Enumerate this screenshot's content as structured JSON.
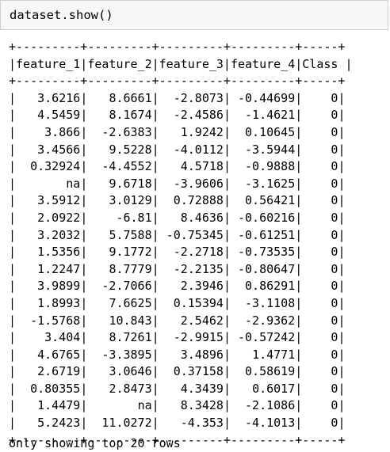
{
  "input": {
    "code": "dataset.show()"
  },
  "table": {
    "border_line": "+---------+---------+---------+---------+-----+",
    "header_line": "|feature_1|feature_2|feature_3|feature_4|Class |",
    "columns": [
      "feature_1",
      "feature_2",
      "feature_3",
      "feature_4",
      "Class"
    ],
    "rows": [
      [
        "3.6216",
        "8.6661",
        "-2.8073",
        "-0.44699",
        "0"
      ],
      [
        "4.5459",
        "8.1674",
        "-2.4586",
        "-1.4621",
        "0"
      ],
      [
        "3.866",
        "-2.6383",
        "1.9242",
        "0.10645",
        "0"
      ],
      [
        "3.4566",
        "9.5228",
        "-4.0112",
        "-3.5944",
        "0"
      ],
      [
        "0.32924",
        "-4.4552",
        "4.5718",
        "-0.9888",
        "0"
      ],
      [
        "na",
        "9.6718",
        "-3.9606",
        "-3.1625",
        "0"
      ],
      [
        "3.5912",
        "3.0129",
        "0.72888",
        "0.56421",
        "0"
      ],
      [
        "2.0922",
        "-6.81",
        "8.4636",
        "-0.60216",
        "0"
      ],
      [
        "3.2032",
        "5.7588",
        "-0.75345",
        "-0.61251",
        "0"
      ],
      [
        "1.5356",
        "9.1772",
        "-2.2718",
        "-0.73535",
        "0"
      ],
      [
        "1.2247",
        "8.7779",
        "-2.2135",
        "-0.80647",
        "0"
      ],
      [
        "3.9899",
        "-2.7066",
        "2.3946",
        "0.86291",
        "0"
      ],
      [
        "1.8993",
        "7.6625",
        "0.15394",
        "-3.1108",
        "0"
      ],
      [
        "-1.5768",
        "10.843",
        "2.5462",
        "-2.9362",
        "0"
      ],
      [
        "3.404",
        "8.7261",
        "-2.9915",
        "-0.57242",
        "0"
      ],
      [
        "4.6765",
        "-3.3895",
        "3.4896",
        "1.4771",
        "0"
      ],
      [
        "2.6719",
        "3.0646",
        "0.37158",
        "0.58619",
        "0"
      ],
      [
        "0.80355",
        "2.8473",
        "4.3439",
        "0.6017",
        "0"
      ],
      [
        "1.4479",
        "na",
        "8.3428",
        "-2.1086",
        "0"
      ],
      [
        "5.2423",
        "11.0272",
        "-4.353",
        "-4.1013",
        "0"
      ]
    ]
  },
  "footer": {
    "text": "only showing top 20 rows"
  }
}
